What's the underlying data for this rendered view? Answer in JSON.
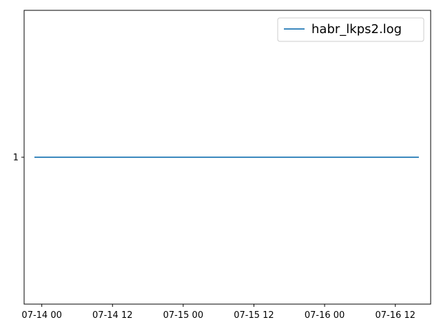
{
  "chart_data": {
    "type": "line",
    "title": "",
    "xlabel": "",
    "ylabel": "",
    "x_axis": {
      "kind": "datetime",
      "ticks": [
        "07-14 00",
        "07-14 12",
        "07-15 00",
        "07-15 12",
        "07-16 00",
        "07-16 12"
      ],
      "range": [
        "07-13 21",
        "07-16 18"
      ]
    },
    "y_axis": {
      "ticks": [
        "1"
      ],
      "range": [
        0.945,
        1.055
      ]
    },
    "grid": false,
    "legend": {
      "placement": "top-right",
      "entries": [
        "habr_lkps2.log"
      ]
    },
    "series": [
      {
        "name": "habr_lkps2.log",
        "color": "#1f77b4",
        "points": [
          {
            "x": "07-13 22:45",
            "y": 1
          },
          {
            "x": "07-16 16:00",
            "y": 1
          }
        ]
      }
    ]
  }
}
